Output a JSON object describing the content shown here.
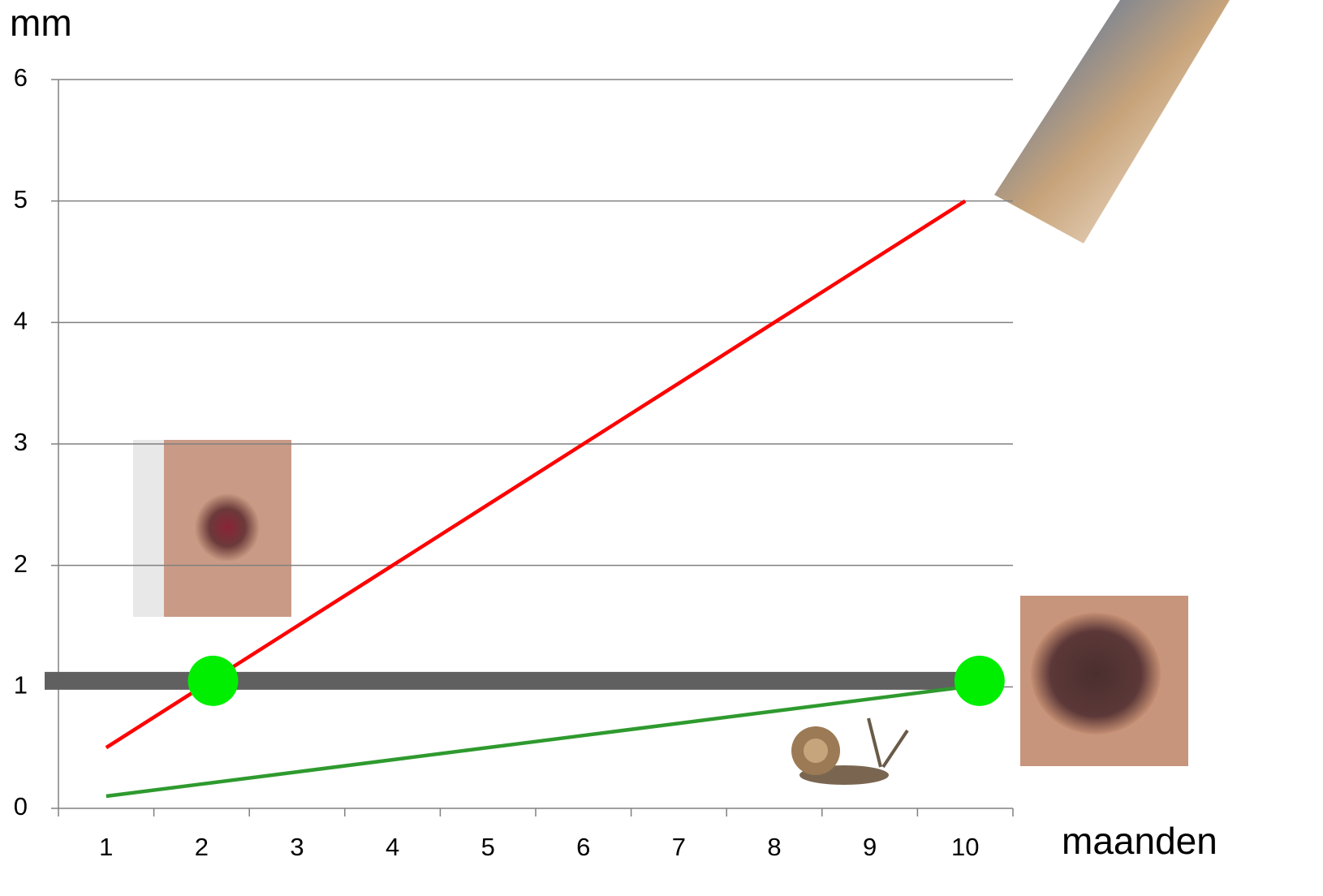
{
  "chart_data": {
    "type": "line",
    "y_label": "mm",
    "x_label": "maanden",
    "categories": [
      "1",
      "2",
      "3",
      "4",
      "5",
      "6",
      "7",
      "8",
      "9",
      "10"
    ],
    "series": [
      {
        "color": "#ff0000",
        "values": [
          0.5,
          1.0,
          1.5,
          2.0,
          2.5,
          3.0,
          3.5,
          4.0,
          4.5,
          5.0
        ]
      },
      {
        "color": "#2e9a2e",
        "values": [
          0.1,
          0.2,
          0.3,
          0.4,
          0.5,
          0.6,
          0.7,
          0.8,
          0.9,
          1.0
        ]
      }
    ],
    "threshold": {
      "value": 1.05,
      "color": "#606060"
    },
    "markers": {
      "color": "#00ee00",
      "x": [
        2.12,
        10.15
      ],
      "y": [
        1.05,
        1.05
      ]
    },
    "ylim": [
      0,
      6
    ],
    "yticks": [
      0,
      1,
      2,
      3,
      4,
      5,
      6
    ],
    "grid": true
  }
}
